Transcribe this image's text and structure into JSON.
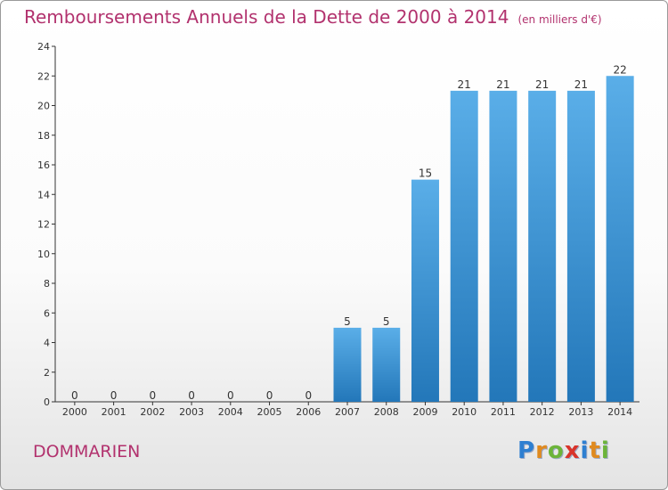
{
  "title": "Remboursements Annuels de la Dette de 2000 à 2014",
  "subtitle": "(en milliers d'€)",
  "place_name": "DOMMARIEN",
  "logo": {
    "letters": [
      "P",
      "r",
      "o",
      "x",
      "i",
      "t",
      "i"
    ],
    "colors": [
      "#2e7fd1",
      "#e08a1f",
      "#6cb43a",
      "#d9342b",
      "#2e7fd1",
      "#e08a1f",
      "#6cb43a"
    ]
  },
  "colors": {
    "bar_light": "#5aaee8",
    "bar_dark": "#2377b9",
    "axis": "#333333"
  },
  "chart_data": {
    "type": "bar",
    "title": "Remboursements Annuels de la Dette de 2000 à 2014",
    "categories": [
      "2000",
      "2001",
      "2002",
      "2003",
      "2004",
      "2005",
      "2006",
      "2007",
      "2008",
      "2009",
      "2010",
      "2011",
      "2012",
      "2013",
      "2014"
    ],
    "values": [
      0,
      0,
      0,
      0,
      0,
      0,
      0,
      5,
      5,
      15,
      21,
      21,
      21,
      21,
      22
    ],
    "data_labels": [
      "0",
      "0",
      "0",
      "0",
      "0",
      "0",
      "0",
      "5",
      "5",
      "15",
      "21",
      "21",
      "21",
      "21",
      "22"
    ],
    "y_ticks": [
      "0",
      "2",
      "4",
      "6",
      "8",
      "10",
      "12",
      "14",
      "16",
      "18",
      "20",
      "22",
      "24"
    ],
    "ylim": [
      0,
      24
    ],
    "grid": false
  }
}
